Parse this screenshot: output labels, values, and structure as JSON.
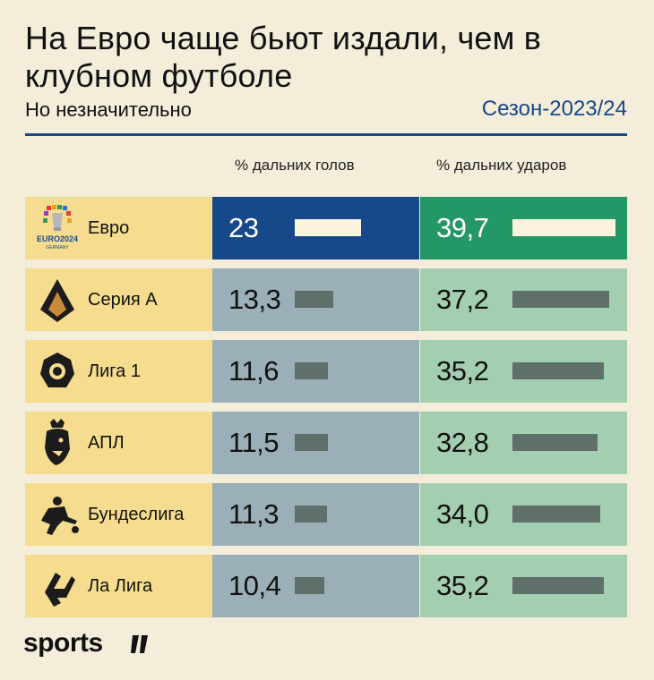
{
  "header": {
    "title": "На Евро чаще бьют издали, чем в клубном футболе",
    "subtitle": "Но незначительно",
    "season": "Сезон-2023/24"
  },
  "columns": {
    "goals": "% дальних голов",
    "shots": "% дальних ударов"
  },
  "logos": {
    "euro_wordmark": "EURO2024",
    "euro_country": "GERMANY"
  },
  "rows": [
    {
      "league": "Евро",
      "icon": "euro2024-logo",
      "goals": "23",
      "shots": "39,7"
    },
    {
      "league": "Серия A",
      "icon": "serie-a-logo",
      "goals": "13,3",
      "shots": "37,2"
    },
    {
      "league": "Лига 1",
      "icon": "ligue1-logo",
      "goals": "11,6",
      "shots": "35,2"
    },
    {
      "league": "АПЛ",
      "icon": "premier-league-logo",
      "goals": "11,5",
      "shots": "32,8"
    },
    {
      "league": "Бундеслига",
      "icon": "bundesliga-logo",
      "goals": "11,3",
      "shots": "34,0"
    },
    {
      "league": "Ла Лига",
      "icon": "laliga-logo",
      "goals": "10,4",
      "shots": "35,2"
    }
  ],
  "chart_data": {
    "type": "bar",
    "title": "На Евро чаще бьют издали, чем в клубном футболе",
    "subtitle": "Но незначительно",
    "categories": [
      "Евро",
      "Серия A",
      "Лига 1",
      "АПЛ",
      "Бундеслига",
      "Ла Лига"
    ],
    "series": [
      {
        "name": "% дальних голов",
        "values": [
          23,
          13.3,
          11.6,
          11.5,
          11.3,
          10.4
        ]
      },
      {
        "name": "% дальних ударов",
        "values": [
          39.7,
          37.2,
          35.2,
          32.8,
          34.0,
          35.2
        ]
      }
    ]
  },
  "colors": {
    "background": "#f3edda",
    "accent_blue": "#17488a",
    "accent_green": "#239766",
    "league_cell": "#f5dc8e",
    "goals_cell": "#9aafb8",
    "shots_cell": "#a3cfb0",
    "bar": "#5f706a"
  },
  "brand": {
    "name": "sports"
  }
}
